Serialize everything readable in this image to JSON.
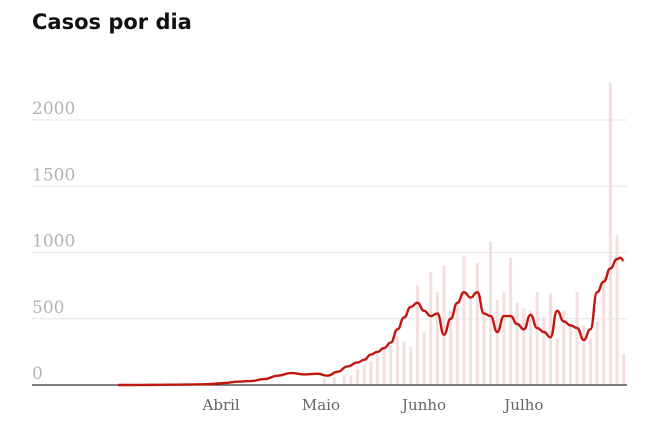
{
  "title": "Casos por dia",
  "chart_data": {
    "type": "line",
    "title": "Casos por dia",
    "xlabel": "",
    "ylabel": "",
    "ylim": [
      0,
      2300
    ],
    "y_ticks": [
      0,
      500,
      1000,
      1500,
      2000
    ],
    "x_tick_labels": [
      "Abril",
      "Maio",
      "Junho",
      "Julho"
    ],
    "x_tick_positions": [
      31,
      61,
      92,
      122
    ],
    "grid": true,
    "legend": "none",
    "series": [
      {
        "kind": "bar",
        "color": "#f4dede",
        "x": [
          62,
          65,
          68,
          70,
          72,
          74,
          76,
          78,
          80,
          82,
          84,
          86,
          88,
          90,
          92,
          94,
          96,
          98,
          100,
          102,
          104,
          106,
          108,
          110,
          112,
          114,
          116,
          118,
          120,
          122,
          124,
          126,
          128,
          130,
          132,
          134,
          136,
          138,
          140,
          142,
          144,
          146,
          148,
          150,
          152
        ],
        "values": [
          50,
          60,
          80,
          70,
          120,
          150,
          180,
          230,
          280,
          300,
          370,
          330,
          290,
          750,
          400,
          850,
          700,
          900,
          560,
          620,
          970,
          650,
          920,
          550,
          1080,
          640,
          700,
          960,
          620,
          580,
          560,
          700,
          520,
          690,
          350,
          560,
          460,
          700,
          450,
          350,
          480,
          820,
          2280,
          1130,
          230
        ]
      },
      {
        "kind": "line",
        "color": "#c0170f",
        "x": [
          0,
          5,
          10,
          15,
          20,
          25,
          28,
          32,
          36,
          40,
          44,
          48,
          52,
          56,
          60,
          63,
          66,
          69,
          72,
          74,
          76,
          78,
          80,
          82,
          84,
          86,
          88,
          90,
          92,
          94,
          96,
          98,
          100,
          102,
          104,
          106,
          108,
          110,
          112,
          114,
          116,
          118,
          120,
          122,
          124,
          126,
          128,
          130,
          132,
          134,
          136,
          138,
          140,
          142,
          144,
          146,
          148,
          150,
          151,
          152
        ],
        "values": [
          0,
          0,
          1,
          2,
          3,
          5,
          8,
          15,
          25,
          30,
          45,
          70,
          90,
          80,
          85,
          70,
          100,
          140,
          170,
          190,
          230,
          250,
          280,
          320,
          420,
          510,
          590,
          620,
          560,
          520,
          540,
          380,
          500,
          620,
          700,
          660,
          700,
          540,
          520,
          400,
          520,
          520,
          460,
          420,
          530,
          430,
          400,
          360,
          560,
          480,
          450,
          430,
          340,
          420,
          700,
          780,
          880,
          950,
          960,
          940
        ]
      }
    ]
  }
}
